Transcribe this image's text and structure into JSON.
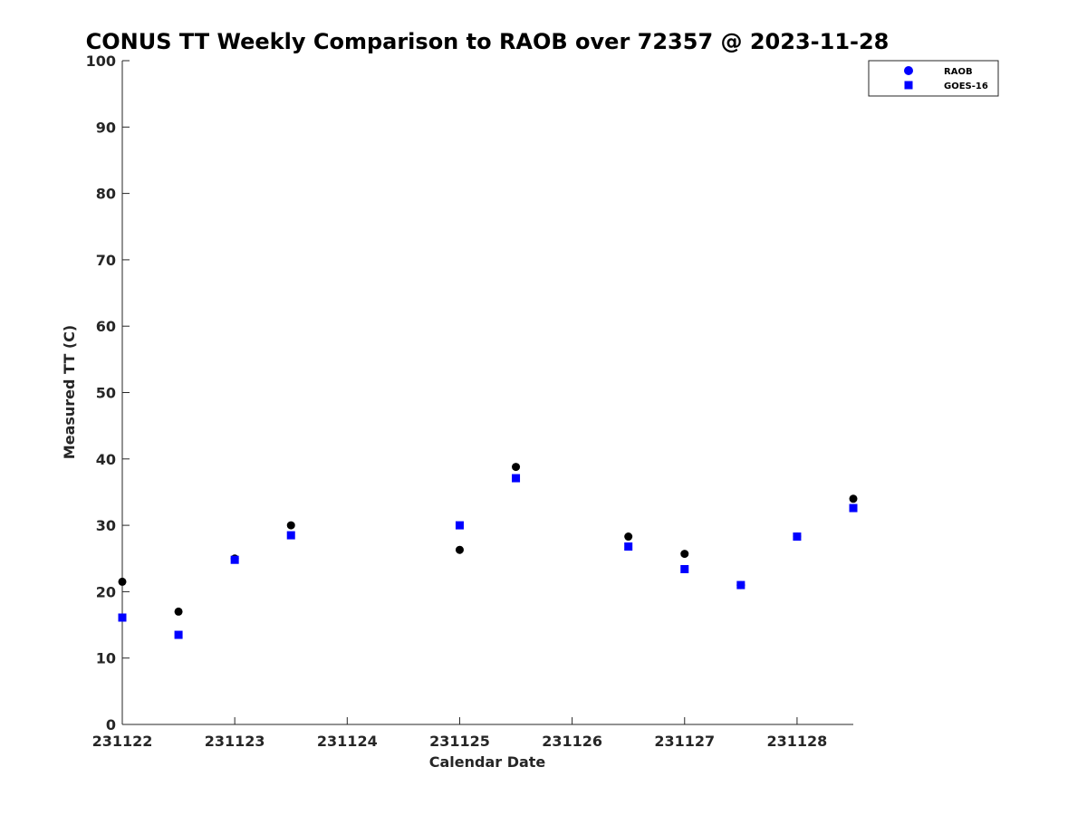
{
  "chart_data": {
    "type": "scatter",
    "title": "CONUS TT Weekly Comparison to RAOB over 72357 @ 2023-11-28",
    "xlabel": "Calendar Date",
    "ylabel": "Measured TT (C)",
    "xlim": [
      0,
      6.5
    ],
    "ylim": [
      0,
      100
    ],
    "x_ticks": [
      0,
      1,
      2,
      3,
      4,
      5,
      6
    ],
    "x_tick_labels": [
      "231122",
      "231123",
      "231124",
      "231125",
      "231126",
      "231127",
      "231128"
    ],
    "y_ticks": [
      0,
      10,
      20,
      30,
      40,
      50,
      60,
      70,
      80,
      90,
      100
    ],
    "legend_position": "top-right",
    "series": [
      {
        "name": "RAOB",
        "marker": "circle",
        "color": "#000000",
        "legend_color": "#0000ff",
        "x": [
          0,
          0.5,
          1,
          1.5,
          3,
          3.5,
          4.5,
          5,
          5.5,
          6,
          6.5
        ],
        "y": [
          21.5,
          17,
          25,
          30,
          26.3,
          38.8,
          28.3,
          25.7,
          21,
          28.3,
          34
        ]
      },
      {
        "name": "GOES-16",
        "marker": "square",
        "color": "#0000ff",
        "legend_color": "#0000ff",
        "x": [
          0,
          0.5,
          1,
          1.5,
          3,
          3.5,
          4.5,
          5,
          5.5,
          6,
          6.5
        ],
        "y": [
          16.1,
          13.5,
          24.8,
          28.5,
          30,
          37.1,
          26.8,
          23.4,
          21,
          28.3,
          32.6
        ]
      }
    ]
  }
}
